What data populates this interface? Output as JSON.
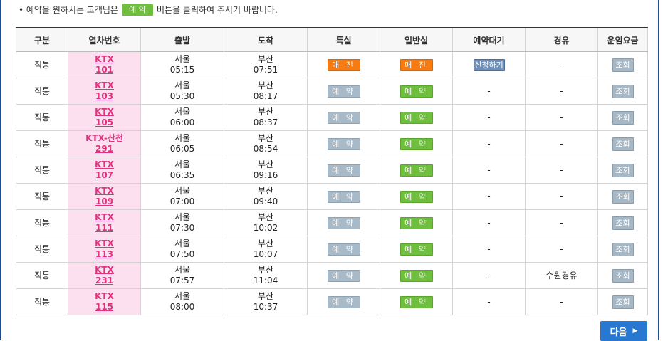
{
  "notice": {
    "prefix": "• 예약을 원하시는 고객님은",
    "button_label": "예 약",
    "suffix": "버튼을 클릭하여 주시기 바랍니다."
  },
  "table": {
    "headers": [
      "구분",
      "열차번호",
      "출발",
      "도착",
      "특실",
      "일반실",
      "예약대기",
      "경유",
      "운임요금"
    ],
    "rows": [
      {
        "type": "직통",
        "train_name": "KTX",
        "train_no": "101",
        "dep_station": "서울",
        "dep_time": "05:15",
        "arr_station": "부산",
        "arr_time": "07:51",
        "first_class": "매 진",
        "first_state": "soldout",
        "economy": "매 진",
        "economy_state": "soldout",
        "waitlist": "신청하기",
        "waitlist_state": "apply",
        "via": "-",
        "fare": "조회"
      },
      {
        "type": "직통",
        "train_name": "KTX",
        "train_no": "103",
        "dep_station": "서울",
        "dep_time": "05:30",
        "arr_station": "부산",
        "arr_time": "08:17",
        "first_class": "예 약",
        "first_state": "gray",
        "economy": "예 약",
        "economy_state": "green",
        "waitlist": "-",
        "waitlist_state": "none",
        "via": "-",
        "fare": "조회"
      },
      {
        "type": "직통",
        "train_name": "KTX",
        "train_no": "105",
        "dep_station": "서울",
        "dep_time": "06:00",
        "arr_station": "부산",
        "arr_time": "08:37",
        "first_class": "예 약",
        "first_state": "gray",
        "economy": "예 약",
        "economy_state": "green",
        "waitlist": "-",
        "waitlist_state": "none",
        "via": "-",
        "fare": "조회"
      },
      {
        "type": "직통",
        "train_name": "KTX-산천",
        "train_no": "291",
        "dep_station": "서울",
        "dep_time": "06:05",
        "arr_station": "부산",
        "arr_time": "08:54",
        "first_class": "예 약",
        "first_state": "gray",
        "economy": "예 약",
        "economy_state": "green",
        "waitlist": "-",
        "waitlist_state": "none",
        "via": "-",
        "fare": "조회"
      },
      {
        "type": "직통",
        "train_name": "KTX",
        "train_no": "107",
        "dep_station": "서울",
        "dep_time": "06:35",
        "arr_station": "부산",
        "arr_time": "09:16",
        "first_class": "예 약",
        "first_state": "gray",
        "economy": "예 약",
        "economy_state": "green",
        "waitlist": "-",
        "waitlist_state": "none",
        "via": "-",
        "fare": "조회"
      },
      {
        "type": "직통",
        "train_name": "KTX",
        "train_no": "109",
        "dep_station": "서울",
        "dep_time": "07:00",
        "arr_station": "부산",
        "arr_time": "09:40",
        "first_class": "예 약",
        "first_state": "gray",
        "economy": "예 약",
        "economy_state": "green",
        "waitlist": "-",
        "waitlist_state": "none",
        "via": "-",
        "fare": "조회"
      },
      {
        "type": "직통",
        "train_name": "KTX",
        "train_no": "111",
        "dep_station": "서울",
        "dep_time": "07:30",
        "arr_station": "부산",
        "arr_time": "10:02",
        "first_class": "예 약",
        "first_state": "gray",
        "economy": "예 약",
        "economy_state": "green",
        "waitlist": "-",
        "waitlist_state": "none",
        "via": "-",
        "fare": "조회"
      },
      {
        "type": "직통",
        "train_name": "KTX",
        "train_no": "113",
        "dep_station": "서울",
        "dep_time": "07:50",
        "arr_station": "부산",
        "arr_time": "10:07",
        "first_class": "예 약",
        "first_state": "gray",
        "economy": "예 약",
        "economy_state": "green",
        "waitlist": "-",
        "waitlist_state": "none",
        "via": "-",
        "fare": "조회"
      },
      {
        "type": "직통",
        "train_name": "KTX",
        "train_no": "231",
        "dep_station": "서울",
        "dep_time": "07:57",
        "arr_station": "부산",
        "arr_time": "11:04",
        "first_class": "예 약",
        "first_state": "gray",
        "economy": "예 약",
        "economy_state": "green",
        "waitlist": "-",
        "waitlist_state": "none",
        "via": "수원경유",
        "fare": "조회"
      },
      {
        "type": "직통",
        "train_name": "KTX",
        "train_no": "115",
        "dep_station": "서울",
        "dep_time": "08:00",
        "arr_station": "부산",
        "arr_time": "10:37",
        "first_class": "예 약",
        "first_state": "gray",
        "economy": "예 약",
        "economy_state": "green",
        "waitlist": "-",
        "waitlist_state": "none",
        "via": "-",
        "fare": "조회"
      }
    ]
  },
  "next_button": {
    "label": "다음",
    "arrow": "▶"
  },
  "colors": {
    "frame": "#1f4c8f",
    "reserve_green": "#6fbe3d",
    "soldout_orange": "#f57b12",
    "disabled_gray": "#a8b9c7",
    "train_cell_pink": "#fde0ef",
    "train_link": "#e0337f",
    "next_blue": "#2878d2"
  }
}
